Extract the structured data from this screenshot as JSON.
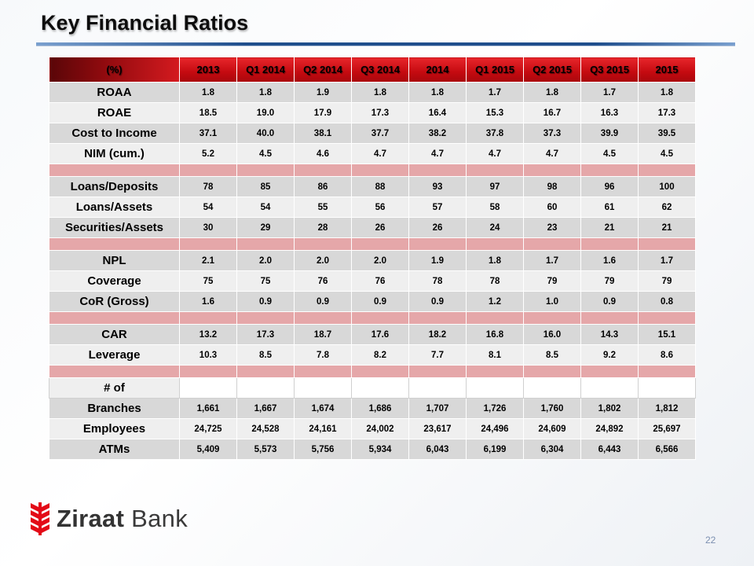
{
  "title": "Key Financial Ratios",
  "columns": [
    "(%)",
    "2013",
    "Q1 2014",
    "Q2 2014",
    "Q3 2014",
    "2014",
    "Q1 2015",
    "Q2 2015",
    "Q3 2015",
    "2015"
  ],
  "rows": [
    {
      "label": "ROAA",
      "values": [
        "1.8",
        "1.8",
        "1.9",
        "1.8",
        "1.8",
        "1.7",
        "1.8",
        "1.7",
        "1.8"
      ]
    },
    {
      "label": "ROAE",
      "values": [
        "18.5",
        "19.0",
        "17.9",
        "17.3",
        "16.4",
        "15.3",
        "16.7",
        "16.3",
        "17.3"
      ]
    },
    {
      "label": "Cost to Income",
      "values": [
        "37.1",
        "40.0",
        "38.1",
        "37.7",
        "38.2",
        "37.8",
        "37.3",
        "39.9",
        "39.5"
      ]
    },
    {
      "label": "NIM (cum.)",
      "values": [
        "5.2",
        "4.5",
        "4.6",
        "4.7",
        "4.7",
        "4.7",
        "4.7",
        "4.5",
        "4.5"
      ]
    },
    {
      "label": "Loans/Deposits",
      "values": [
        "78",
        "85",
        "86",
        "88",
        "93",
        "97",
        "98",
        "96",
        "100"
      ]
    },
    {
      "label": "Loans/Assets",
      "values": [
        "54",
        "54",
        "55",
        "56",
        "57",
        "58",
        "60",
        "61",
        "62"
      ]
    },
    {
      "label": "Securities/Assets",
      "values": [
        "30",
        "29",
        "28",
        "26",
        "26",
        "24",
        "23",
        "21",
        "21"
      ]
    },
    {
      "label": "NPL",
      "values": [
        "2.1",
        "2.0",
        "2.0",
        "2.0",
        "1.9",
        "1.8",
        "1.7",
        "1.6",
        "1.7"
      ]
    },
    {
      "label": "Coverage",
      "values": [
        "75",
        "75",
        "76",
        "76",
        "78",
        "78",
        "79",
        "79",
        "79"
      ]
    },
    {
      "label": "CoR (Gross)",
      "values": [
        "1.6",
        "0.9",
        "0.9",
        "0.9",
        "0.9",
        "1.2",
        "1.0",
        "0.9",
        "0.8"
      ]
    },
    {
      "label": "CAR",
      "values": [
        "13.2",
        "17.3",
        "18.7",
        "17.6",
        "18.2",
        "16.8",
        "16.0",
        "14.3",
        "15.1"
      ]
    },
    {
      "label": "Leverage",
      "values": [
        "10.3",
        "8.5",
        "7.8",
        "8.2",
        "7.7",
        "8.1",
        "8.5",
        "9.2",
        "8.6"
      ]
    },
    {
      "label": "# of"
    },
    {
      "label": "Branches",
      "values": [
        "1,661",
        "1,667",
        "1,674",
        "1,686",
        "1,707",
        "1,726",
        "1,760",
        "1,802",
        "1,812"
      ]
    },
    {
      "label": "Employees",
      "values": [
        "24,725",
        "24,528",
        "24,161",
        "24,002",
        "23,617",
        "24,496",
        "24,609",
        "24,892",
        "25,697"
      ]
    },
    {
      "label": "ATMs",
      "values": [
        "5,409",
        "5,573",
        "5,756",
        "5,934",
        "6,043",
        "6,199",
        "6,304",
        "6,443",
        "6,566"
      ]
    }
  ],
  "logo": {
    "brand_bold": "Ziraat",
    "brand_regular": "Bank",
    "icon": "ziraat-wheat-icon",
    "color": "#e30a17"
  },
  "page_number": "22",
  "colors": {
    "header_red": "#d01016",
    "row_dark": "#d8d8d8",
    "row_light": "#efefef",
    "separator": "#e5a7a9",
    "title_rule": "#1f4e8c"
  }
}
